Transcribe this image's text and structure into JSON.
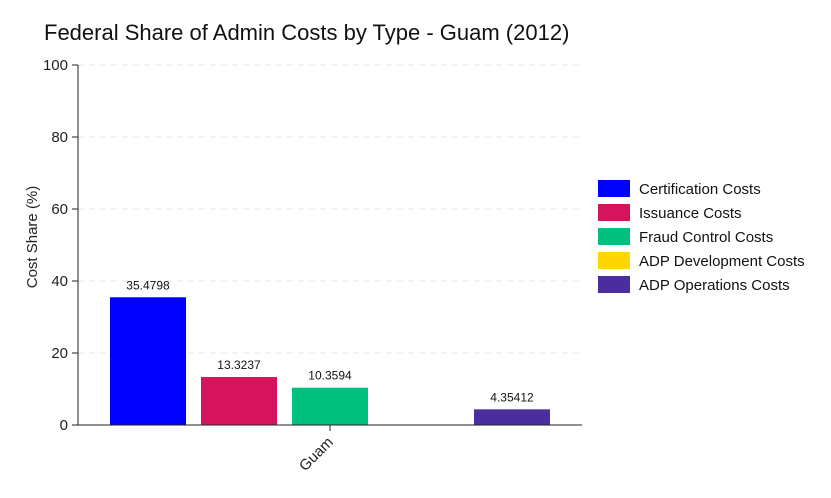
{
  "chart_data": {
    "type": "bar",
    "title": "Federal Share of Admin Costs by Type - Guam (2012)",
    "xlabel": "",
    "ylabel": "Cost Share (%)",
    "ylim": [
      0,
      100
    ],
    "yticks": [
      0,
      20,
      40,
      60,
      80,
      100
    ],
    "categories": [
      "Guam"
    ],
    "grid": true,
    "legend_position": "right",
    "series": [
      {
        "name": "Certification Costs",
        "color": "#0000ff",
        "values": [
          35.4798
        ],
        "label": "35.4798"
      },
      {
        "name": "Issuance Costs",
        "color": "#d6145c",
        "values": [
          13.3237
        ],
        "label": "13.3237"
      },
      {
        "name": "Fraud Control Costs",
        "color": "#00c07f",
        "values": [
          10.3594
        ],
        "label": "10.3594"
      },
      {
        "name": "ADP Development Costs",
        "color": "#ffd700",
        "values": [
          0
        ],
        "label": ""
      },
      {
        "name": "ADP Operations Costs",
        "color": "#4b2e9e",
        "values": [
          4.35412
        ],
        "label": "4.35412"
      }
    ]
  }
}
